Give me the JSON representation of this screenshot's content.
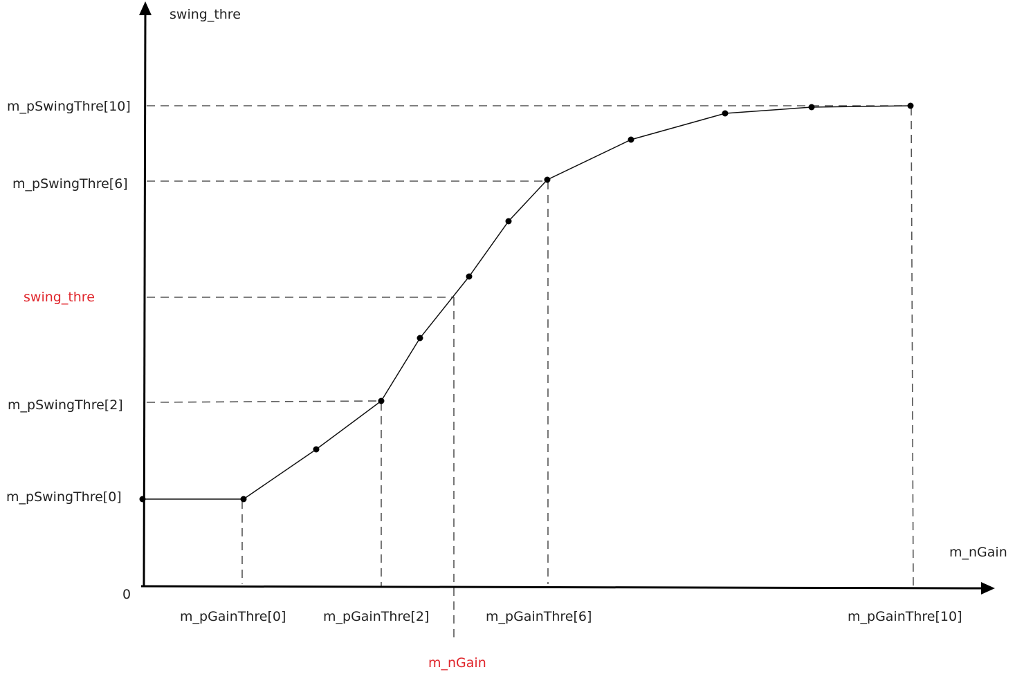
{
  "y_axis": {
    "title": "swing_thre",
    "origin_label": "0",
    "tick_labels": [
      "m_pSwingThre[10]",
      "m_pSwingThre[6]",
      "m_pSwingThre[2]",
      "m_pSwingThre[0]"
    ],
    "highlight_label": "swing_thre"
  },
  "x_axis": {
    "title": "m_nGain",
    "tick_labels": [
      "m_pGainThre[0]",
      "m_pGainThre[2]",
      "m_pGainThre[6]",
      "m_pGainThre[10]"
    ],
    "highlight_label": "m_nGain"
  },
  "colors": {
    "highlight": "#e0252b",
    "curve": "#111111",
    "guides": "#555555"
  }
}
